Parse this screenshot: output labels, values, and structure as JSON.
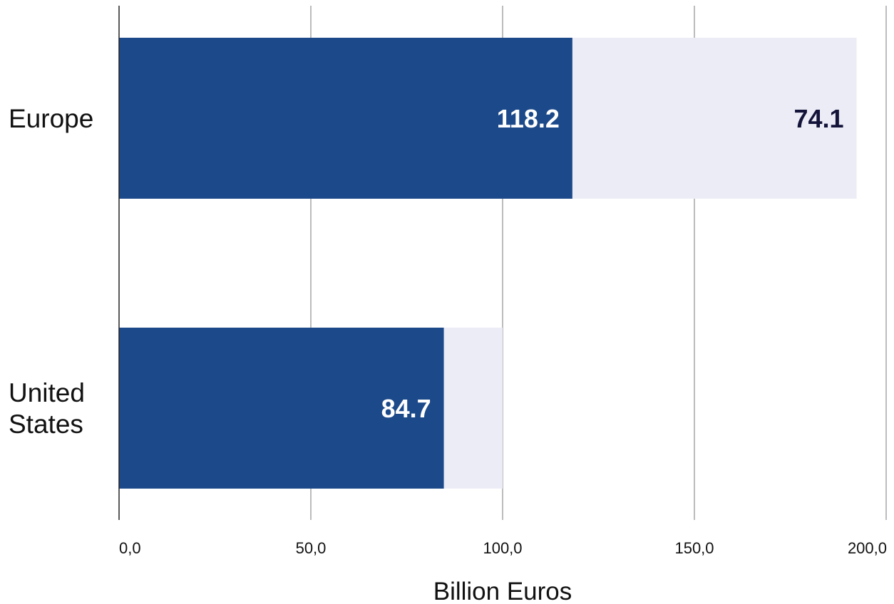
{
  "chart_data": {
    "type": "bar",
    "orientation": "horizontal",
    "stacked": true,
    "categories": [
      [
        "Europe"
      ],
      [
        "United",
        "States"
      ]
    ],
    "series": [
      {
        "values": [
          118.2,
          84.7
        ],
        "color": "#1c4989",
        "label_color": "#ffffff",
        "labels": [
          "118.2",
          "84.7"
        ]
      },
      {
        "values": [
          74.1,
          15.3
        ],
        "color": "#ececf6",
        "label_color": "#14143a",
        "labels": [
          "74.1",
          ""
        ]
      }
    ],
    "xlabel": "Billion Euros",
    "ylabel": "",
    "xlim": [
      0,
      200
    ],
    "xticks": [
      0,
      50,
      100,
      150,
      200
    ],
    "xtick_labels": [
      "0,0",
      "50,0",
      "100,0",
      "150,0",
      "200,0"
    ],
    "grid": true,
    "gridline_color": "#a6a6a6",
    "axis_color": "#222222"
  }
}
